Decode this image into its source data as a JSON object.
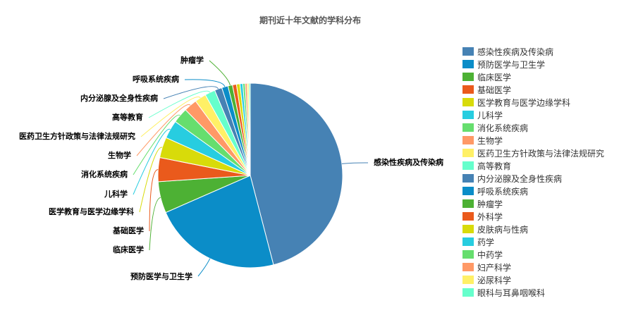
{
  "chart_data": {
    "type": "pie",
    "title": "期刊近十年文献的学科分布",
    "legend_position": "right",
    "slices": [
      {
        "label": "感染性疾病及传染病",
        "value": 46.0,
        "color": "#4682B4"
      },
      {
        "label": "预防医学与卫生学",
        "value": 22.5,
        "color": "#0B8DC8"
      },
      {
        "label": "临床医学",
        "value": 5.5,
        "color": "#4DB134"
      },
      {
        "label": "基础医学",
        "value": 4.2,
        "color": "#EA5A1C"
      },
      {
        "label": "医学教育与医学边缘学科",
        "value": 3.6,
        "color": "#D8DB0A"
      },
      {
        "label": "儿科学",
        "value": 3.2,
        "color": "#27CDE0"
      },
      {
        "label": "消化系统疾病",
        "value": 2.7,
        "color": "#66DE6E"
      },
      {
        "label": "生物学",
        "value": 2.3,
        "color": "#FF9966"
      },
      {
        "label": "医药卫生方针政策与法律法规研究",
        "value": 2.0,
        "color": "#FFF066"
      },
      {
        "label": "高等教育",
        "value": 1.8,
        "color": "#66FFCC"
      },
      {
        "label": "内分泌腺及全身性疾病",
        "value": 1.3,
        "color": "#4682B4"
      },
      {
        "label": "呼吸系统疾病",
        "value": 1.1,
        "color": "#0B8DC8"
      },
      {
        "label": "肿瘤学",
        "value": 0.8,
        "color": "#4DB134"
      },
      {
        "label": "外科学",
        "value": 0.7,
        "color": "#EA5A1C"
      },
      {
        "label": "皮肤病与性病",
        "value": 0.6,
        "color": "#D8DB0A"
      },
      {
        "label": "药学",
        "value": 0.5,
        "color": "#27CDE0"
      },
      {
        "label": "中药学",
        "value": 0.4,
        "color": "#66DE6E"
      },
      {
        "label": "妇产科学",
        "value": 0.35,
        "color": "#FF9966"
      },
      {
        "label": "泌尿科学",
        "value": 0.3,
        "color": "#FFF066"
      },
      {
        "label": "眼科与耳鼻咽喉科",
        "value": 0.25,
        "color": "#66FFCC"
      }
    ],
    "callout_labels": [
      "感染性疾病及传染病",
      "预防医学与卫生学",
      "临床医学",
      "基础医学",
      "医学教育与医学边缘学科",
      "儿科学",
      "消化系统疾病",
      "生物学",
      "医药卫生方针政策与法律法规研究",
      "高等教育",
      "内分泌腺及全身性疾病",
      "呼吸系统疾病",
      "肿瘤学"
    ]
  }
}
